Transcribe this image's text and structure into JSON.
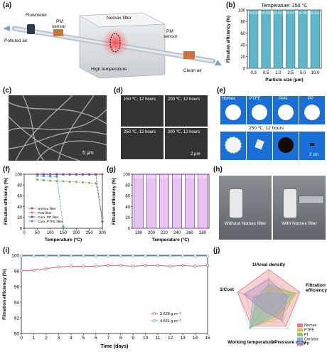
{
  "panel_labels": [
    "(a)",
    "(b)",
    "(c)",
    "(d)",
    "(e)",
    "(f)",
    "(g)",
    "(h)",
    "(i)",
    "(j)"
  ],
  "panel_a": {
    "labels": {
      "flowmeter": "Flowmeter",
      "pm1": "PM",
      "pm1b": "sensor",
      "nomex": "Nomex filter",
      "pm2": "PM",
      "pm2b": "sensor",
      "polluted": "Polluted air",
      "hightemp": "High temperature",
      "clean": "Clean air"
    }
  },
  "panel_c": {
    "scale": "5 μm"
  },
  "panel_d": {
    "labels": [
      "150 ℃, 12 hours",
      "200 ℃, 12 hours",
      "250 ℃, 12 hours",
      "300 ℃, 12 hours"
    ],
    "scale": "2 μm"
  },
  "panel_e": {
    "materials": [
      "Nomex",
      "PTFE",
      "PAN",
      "PP"
    ],
    "condition": "250 ℃, 12 hours",
    "scale": "2 cm"
  },
  "panel_h": {
    "left": "Without Nomex filter",
    "right": "With Nomex filter"
  },
  "chart_data": [
    {
      "id": "b",
      "type": "bar",
      "title": "Temperature: 250 °C",
      "categories": [
        "0.3",
        "0.5",
        "1.0",
        "2.5",
        "5.0",
        "10.0"
      ],
      "values": [
        99.935,
        99.905,
        99.926,
        99.907,
        99.886,
        99.921
      ],
      "xlabel": "Particle size (μm)",
      "ylabel": "Filtration efficiency (%)",
      "ylim": [
        0,
        100
      ],
      "yticks": [
        "0",
        "20",
        "40",
        "60",
        "80",
        "100"
      ]
    },
    {
      "id": "f",
      "type": "line",
      "xlabel": "Temperature (°C)",
      "ylabel": "Filtration efficiency (%)",
      "xlim": [
        0,
        300
      ],
      "ylim": [
        0,
        100
      ],
      "xticks": [
        "0",
        "50",
        "100",
        "150",
        "200",
        "250",
        "300"
      ],
      "yticks": [
        "0",
        "20",
        "40",
        "60",
        "80",
        "100"
      ],
      "legend": "bottom-left",
      "series": [
        {
          "name": "Nomex filter",
          "color": "#d1506b",
          "x": [
            50,
            75,
            100,
            125,
            150,
            175,
            200,
            225,
            250,
            275,
            300
          ],
          "y": [
            99.9,
            99.9,
            99.9,
            99.9,
            99.9,
            99.9,
            99.9,
            99.9,
            99.9,
            99.8,
            99.8
          ]
        },
        {
          "name": "PAN filter",
          "color": "#8cb35a",
          "x": [
            50,
            75,
            100,
            125,
            150,
            175,
            200,
            225,
            250,
            275,
            300
          ],
          "y": [
            90,
            89,
            88,
            87,
            87,
            86,
            86,
            85,
            84,
            83,
            20
          ]
        },
        {
          "name": "Com. PP filter",
          "color": "#7b54a8",
          "x": [
            50,
            75,
            100,
            125,
            150,
            175,
            200,
            225,
            250,
            275,
            300
          ],
          "y": [
            99.5,
            99.5,
            99.5,
            99.5,
            99.5,
            99.5,
            99.5,
            99.5,
            99.3,
            99,
            12
          ]
        },
        {
          "name": "Com. PTFE filter",
          "color": "#4fa9b8",
          "x": [
            50,
            75,
            100,
            125,
            150
          ],
          "y": [
            97,
            96.5,
            96,
            95.5,
            3
          ]
        }
      ]
    },
    {
      "id": "g",
      "type": "bar",
      "categories": [
        "180",
        "200",
        "220",
        "240",
        "260",
        "280"
      ],
      "values": [
        99.936,
        99.935,
        99.952,
        99.969,
        99.93,
        99.953
      ],
      "xlabel": "Temperature (°C)",
      "ylabel": "Filtration efficiency (%)",
      "ylim": [
        0,
        100
      ],
      "yticks": [
        "0",
        "20",
        "40",
        "60",
        "80",
        "100"
      ]
    },
    {
      "id": "i",
      "type": "line",
      "xlabel": "Time (days)",
      "ylabel": "Filtration efficiency (%)",
      "xlim": [
        0,
        15
      ],
      "ylim": [
        90,
        100
      ],
      "xticks": [
        "0",
        "1",
        "2",
        "3",
        "4",
        "5",
        "6",
        "7",
        "8",
        "9",
        "10",
        "11",
        "12",
        "13",
        "14",
        "15"
      ],
      "yticks": [
        "90",
        "92",
        "94",
        "96",
        "98",
        "100"
      ],
      "legend": "bottom-right",
      "series": [
        {
          "name": "2.528 g·m⁻²",
          "color": "#d1506b",
          "x": [
            0,
            1,
            2,
            3,
            4,
            5,
            6,
            7,
            8,
            9,
            10,
            11,
            12,
            13,
            14,
            15
          ],
          "y": [
            98.0,
            98.1,
            98.3,
            98.5,
            98.6,
            98.6,
            98.6,
            98.7,
            98.7,
            98.6,
            98.7,
            98.7,
            98.6,
            98.7,
            98.6,
            98.7
          ]
        },
        {
          "name": "4.631 g·m⁻²",
          "color": "#4fa9b8",
          "x": [
            0,
            1,
            2,
            3,
            4,
            5,
            6,
            7,
            8,
            9,
            10,
            11,
            12,
            13,
            14,
            15
          ],
          "y": [
            99.9,
            99.9,
            99.9,
            99.9,
            99.9,
            99.9,
            99.9,
            99.9,
            99.9,
            99.9,
            99.9,
            99.9,
            99.9,
            99.9,
            99.9,
            99.9
          ]
        }
      ]
    },
    {
      "id": "j",
      "type": "radar",
      "axes": [
        "1/Areal density",
        "Filtration efficiency",
        "1/Pressure drop",
        "Working temperature",
        "1/Cost"
      ],
      "series": [
        {
          "name": "Nomex",
          "color": "#e8787e",
          "values": [
            1.0,
            1.0,
            0.9,
            0.9,
            1.0
          ]
        },
        {
          "name": "PTFE",
          "color": "#e2b75a",
          "values": [
            0.45,
            0.9,
            0.6,
            0.95,
            0.35
          ]
        },
        {
          "name": "PI",
          "color": "#8cc66a",
          "values": [
            0.55,
            0.85,
            0.5,
            0.95,
            0.4
          ]
        },
        {
          "name": "Ceramic",
          "color": "#7bb8d6",
          "values": [
            0.3,
            0.7,
            0.4,
            1.0,
            0.5
          ]
        },
        {
          "name": "PP",
          "color": "#a886c6",
          "values": [
            0.7,
            0.6,
            0.7,
            0.3,
            0.8
          ]
        }
      ]
    }
  ]
}
